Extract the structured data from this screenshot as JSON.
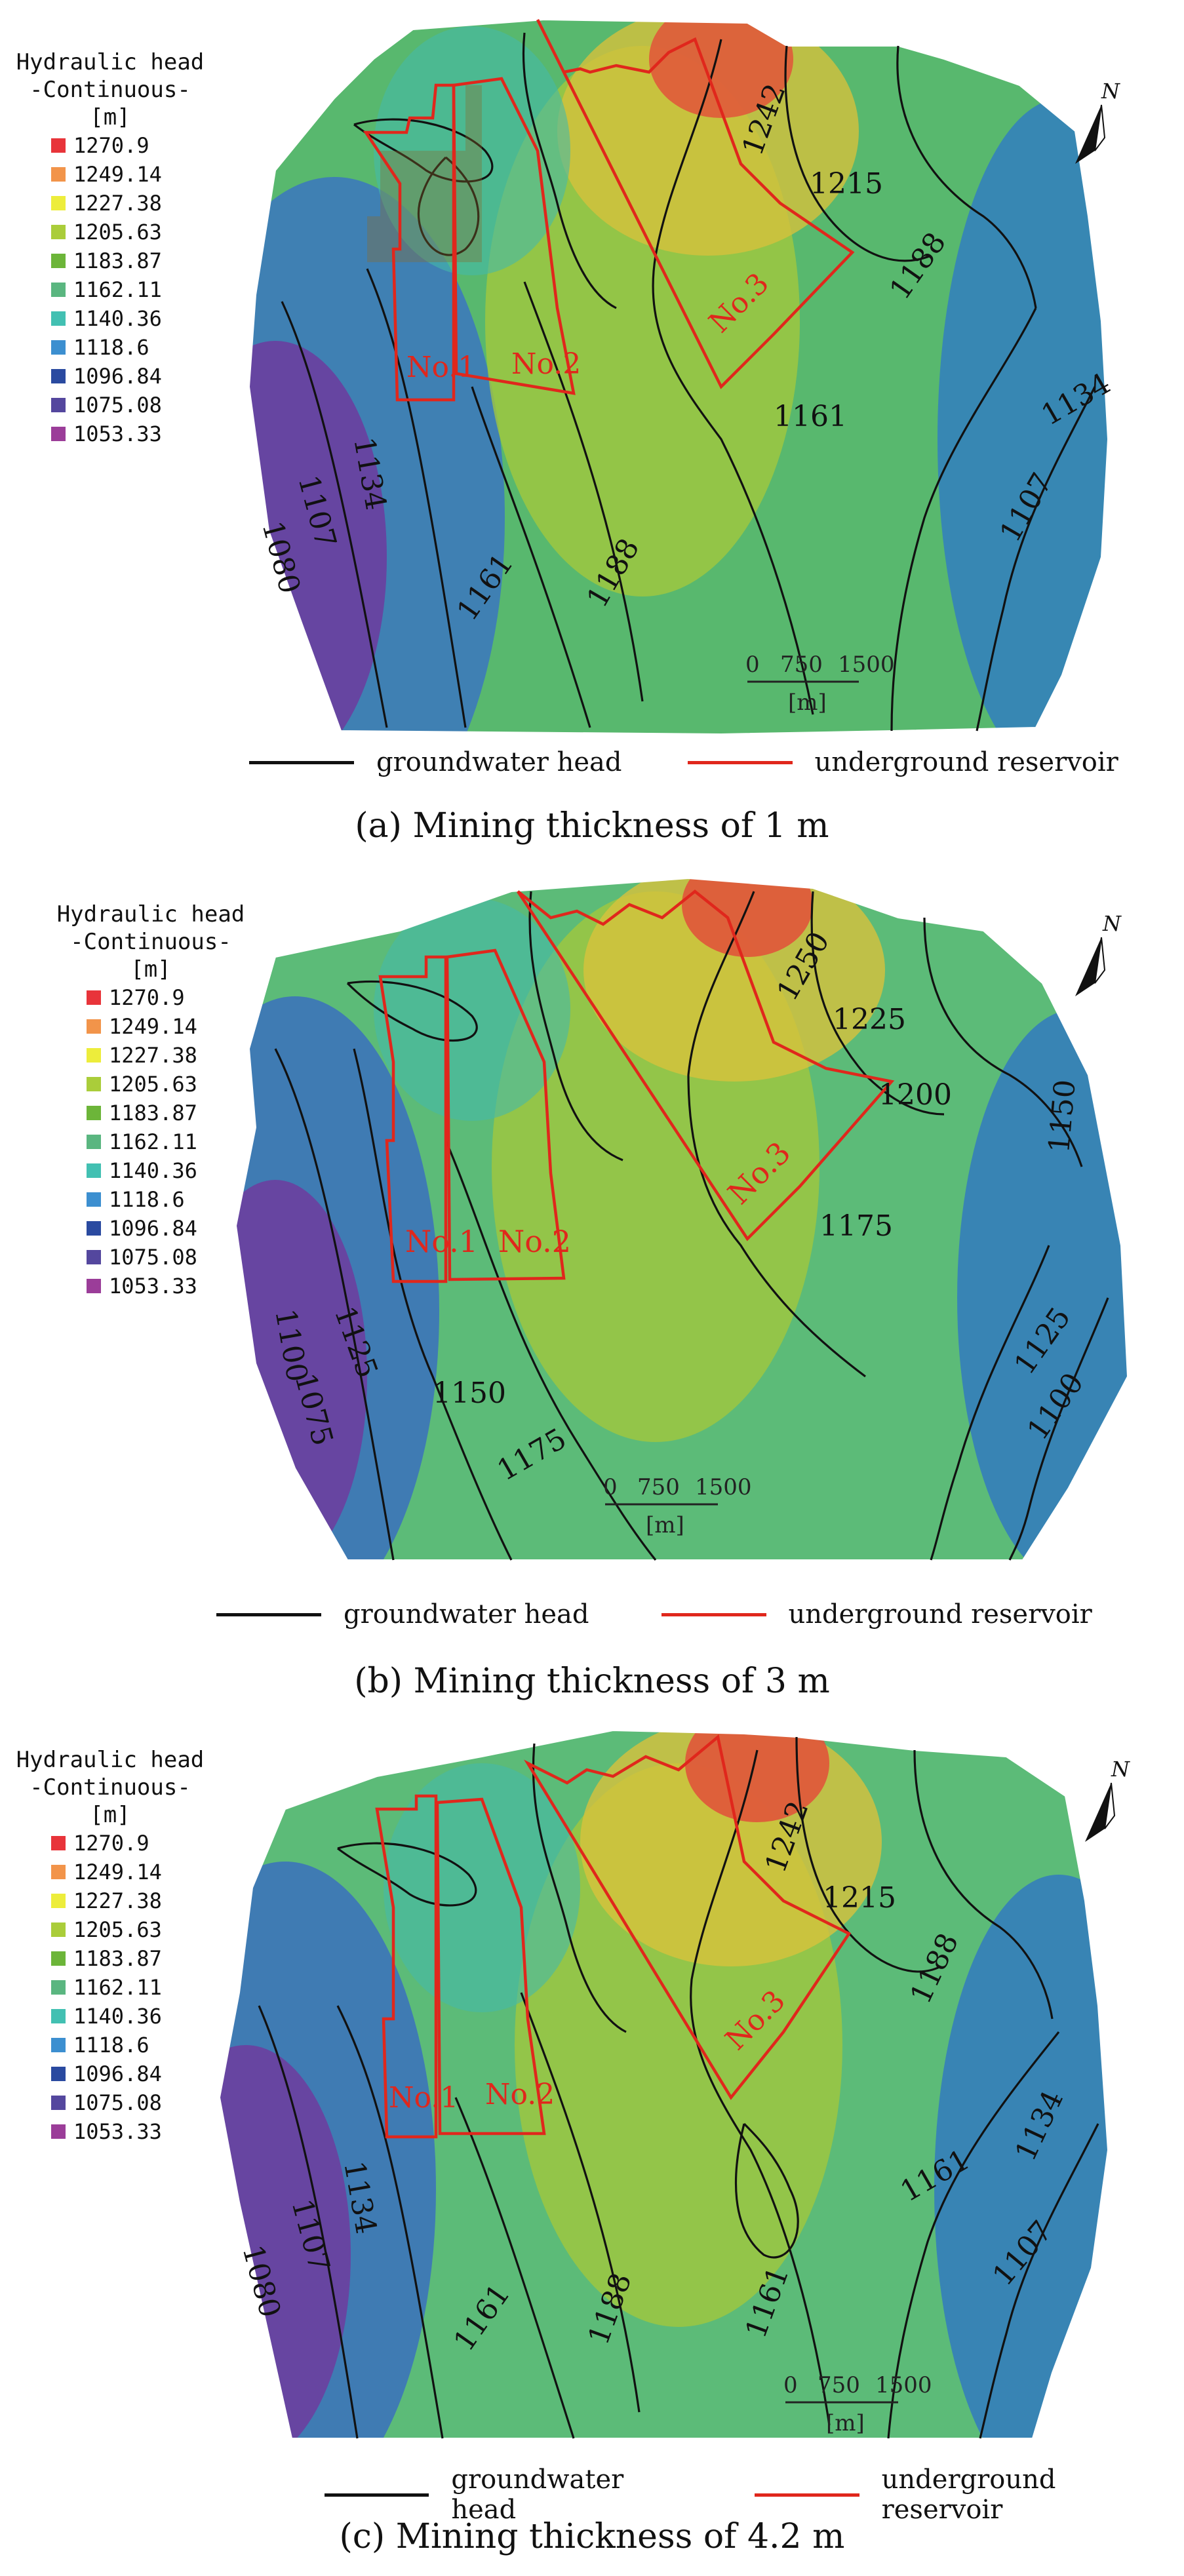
{
  "legend": {
    "title_line1": "Hydraulic head",
    "title_line2": "-Continuous-",
    "unit": "[m]",
    "items": [
      {
        "label": "1270.9",
        "color": "#e8343a"
      },
      {
        "label": "1249.14",
        "color": "#f2944a"
      },
      {
        "label": "1227.38",
        "color": "#eded3b"
      },
      {
        "label": "1205.63",
        "color": "#aacd3a"
      },
      {
        "label": "1183.87",
        "color": "#6cb539"
      },
      {
        "label": "1162.11",
        "color": "#5ab680"
      },
      {
        "label": "1140.36",
        "color": "#42c0b2"
      },
      {
        "label": "1118.6",
        "color": "#3c8fd0"
      },
      {
        "label": "1096.84",
        "color": "#2a4aa0"
      },
      {
        "label": "1075.08",
        "color": "#54479e"
      },
      {
        "label": "1053.33",
        "color": "#9b3d99"
      }
    ]
  },
  "key": {
    "contour_label": "groundwater head",
    "contour_color": "#111111",
    "reservoir_label": "underground reservoir",
    "reservoir_color": "#e0271c"
  },
  "reservoirs": [
    "No.1",
    "No.2",
    "No.3"
  ],
  "north_label": "N",
  "scale": {
    "ticks": [
      "0",
      "750",
      "1500"
    ],
    "unit": "[m]"
  },
  "panels": [
    {
      "caption": "(a) Mining thickness of 1 m",
      "contour_labels": [
        "1242",
        "1215",
        "1188",
        "1161",
        "1134",
        "1107",
        "1080",
        "1134",
        "1107",
        "1161",
        "1188"
      ]
    },
    {
      "caption": "(b) Mining thickness of 3 m",
      "contour_labels": [
        "1250",
        "1225",
        "1200",
        "1175",
        "1150",
        "1125",
        "1100",
        "1125",
        "1100",
        "1075",
        "1150",
        "1175"
      ]
    },
    {
      "caption": "(c) Mining thickness of 4.2 m",
      "contour_labels": [
        "1242",
        "1215",
        "1188",
        "1161",
        "1134",
        "1107",
        "1080",
        "1134",
        "1107",
        "1161",
        "1188",
        "1161"
      ]
    }
  ]
}
